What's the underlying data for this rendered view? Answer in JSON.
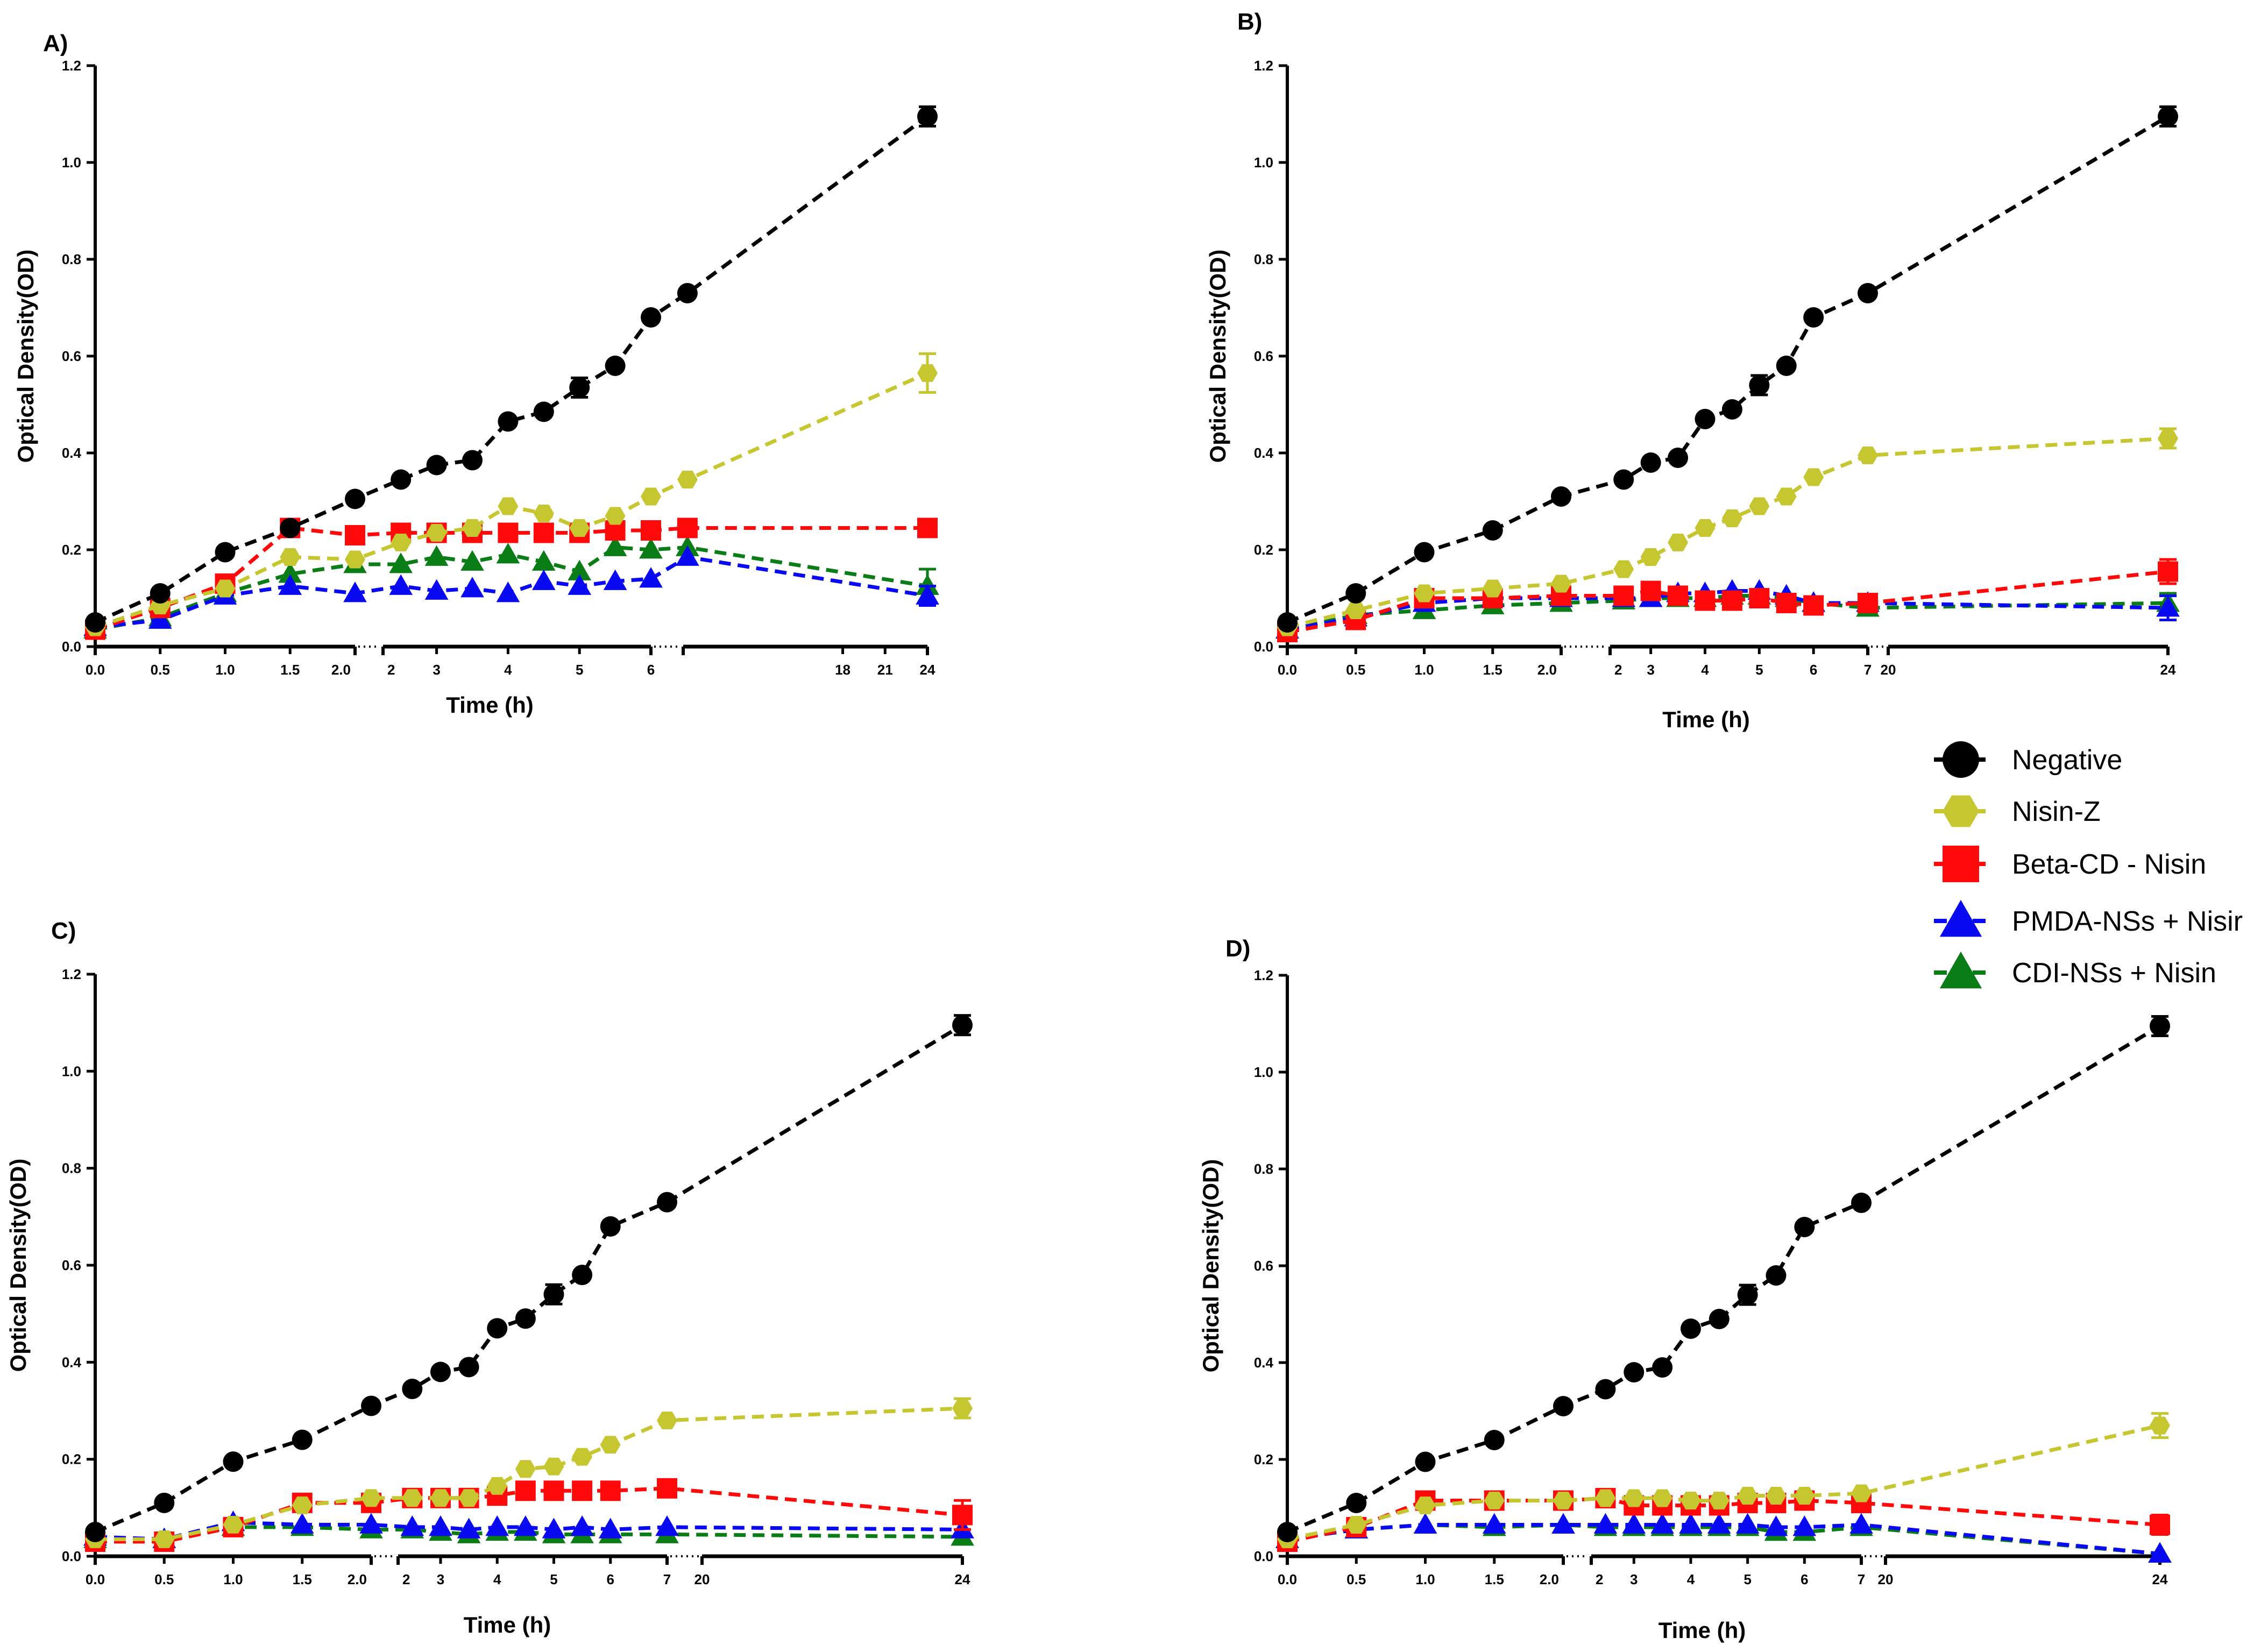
{
  "figure": {
    "legend": [
      {
        "name": "Negative",
        "color": "#000000",
        "marker": "circle-icon"
      },
      {
        "name": "Nisin-Z",
        "color": "#c6c630",
        "marker": "hexagon-icon"
      },
      {
        "name": "Beta-CD - Nisin",
        "color": "#ff0a0a",
        "marker": "square-icon"
      },
      {
        "name": "PMDA-NSs + Nisir",
        "color": "#0a0af0",
        "marker": "triangle-icon"
      },
      {
        "name": "CDI-NSs + Nisin",
        "color": "#0b7d16",
        "marker": "triangle-icon"
      }
    ]
  },
  "chart_data": [
    {
      "panel": "A)",
      "type": "line",
      "xlabel": "Time (h)",
      "ylabel": "Optical Density(OD)",
      "ylim": [
        0,
        1.2
      ],
      "yticks": [
        "0.0",
        "0.2",
        "0.4",
        "0.6",
        "0.8",
        "1.0",
        "1.2"
      ],
      "xticks": [
        {
          "t": 0,
          "label": "0.0"
        },
        {
          "t": 0.5,
          "label": "0.5"
        },
        {
          "t": 1,
          "label": "1.0"
        },
        {
          "t": 1.5,
          "label": "1.5"
        },
        {
          "t": 2,
          "label": "2.0"
        },
        {
          "t": 2.25,
          "label": "2"
        },
        {
          "t": 3,
          "label": "3"
        },
        {
          "t": 4,
          "label": "4"
        },
        {
          "t": 5,
          "label": "5"
        },
        {
          "t": 6,
          "label": "6"
        },
        {
          "t": 18,
          "label": "18"
        },
        {
          "t": 21,
          "label": "21"
        },
        {
          "t": 24,
          "label": "24"
        }
      ],
      "x": [
        0,
        0.5,
        1,
        1.5,
        2,
        2.5,
        3,
        3.5,
        4,
        4.5,
        5,
        5.5,
        6,
        7,
        24
      ],
      "series": [
        {
          "name": "Negative",
          "values": [
            0.05,
            0.11,
            0.195,
            0.245,
            0.305,
            0.345,
            0.375,
            0.385,
            0.465,
            0.485,
            0.535,
            0.58,
            0.68,
            0.73,
            1.095
          ],
          "errors": {
            "14": 0.02,
            "10": 0.02
          }
        },
        {
          "name": "Nisin-Z",
          "values": [
            0.04,
            0.085,
            0.12,
            0.185,
            0.18,
            0.215,
            0.235,
            0.245,
            0.29,
            0.275,
            0.245,
            0.27,
            0.31,
            0.345,
            0.565
          ],
          "errors": {
            "14": 0.04
          }
        },
        {
          "name": "Beta-CD - Nisin",
          "values": [
            0.035,
            0.08,
            0.13,
            0.245,
            0.23,
            0.235,
            0.235,
            0.235,
            0.235,
            0.235,
            0.235,
            0.24,
            0.24,
            0.245,
            0.245
          ],
          "errors": {}
        },
        {
          "name": "PMDA-NSs + Nisir",
          "values": [
            0.04,
            0.055,
            0.105,
            0.125,
            0.11,
            0.125,
            0.115,
            0.12,
            0.11,
            0.135,
            0.125,
            0.135,
            0.14,
            0.185,
            0.105
          ],
          "errors": {
            "14": 0.02
          }
        },
        {
          "name": "CDI-NSs + Nisin",
          "values": [
            0.035,
            0.06,
            0.11,
            0.15,
            0.17,
            0.17,
            0.185,
            0.175,
            0.19,
            0.175,
            0.155,
            0.205,
            0.2,
            0.205,
            0.125
          ],
          "errors": {
            "14": 0.035
          }
        }
      ]
    },
    {
      "panel": "B)",
      "type": "line",
      "xlabel": "Time (h)",
      "ylabel": "Optical Density(OD)",
      "ylim": [
        0,
        1.2
      ],
      "yticks": [
        "0.0",
        "0.2",
        "0.4",
        "0.6",
        "0.8",
        "1.0",
        "1.2"
      ],
      "xticks": [
        {
          "t": 0,
          "label": "0.0"
        },
        {
          "t": 0.5,
          "label": "0.5"
        },
        {
          "t": 1,
          "label": "1.0"
        },
        {
          "t": 1.5,
          "label": "1.5"
        },
        {
          "t": 2,
          "label": "2.0"
        },
        {
          "t": 2.25,
          "label": "2"
        },
        {
          "t": 3,
          "label": "3"
        },
        {
          "t": 4,
          "label": "4"
        },
        {
          "t": 5,
          "label": "5"
        },
        {
          "t": 6,
          "label": "6"
        },
        {
          "t": 7,
          "label": "7"
        },
        {
          "t": 20,
          "label": "20"
        },
        {
          "t": 24,
          "label": "24"
        }
      ],
      "x": [
        0,
        0.5,
        1,
        1.5,
        2,
        2.5,
        3,
        3.5,
        4,
        4.5,
        5,
        5.5,
        6,
        7,
        24
      ],
      "series": [
        {
          "name": "Negative",
          "values": [
            0.05,
            0.11,
            0.195,
            0.24,
            0.31,
            0.345,
            0.38,
            0.39,
            0.47,
            0.49,
            0.54,
            0.58,
            0.68,
            0.73,
            1.095
          ],
          "errors": {
            "14": 0.02,
            "10": 0.02
          }
        },
        {
          "name": "Nisin-Z",
          "values": [
            0.04,
            0.075,
            0.11,
            0.12,
            0.13,
            0.16,
            0.185,
            0.215,
            0.245,
            0.265,
            0.29,
            0.31,
            0.35,
            0.395,
            0.43
          ],
          "errors": {
            "14": 0.02
          }
        },
        {
          "name": "Beta-CD - Nisin",
          "values": [
            0.03,
            0.055,
            0.1,
            0.1,
            0.105,
            0.105,
            0.115,
            0.105,
            0.095,
            0.095,
            0.1,
            0.09,
            0.085,
            0.09,
            0.155
          ],
          "errors": {
            "14": 0.025
          }
        },
        {
          "name": "PMDA-NSs + Nisir",
          "values": [
            0.035,
            0.06,
            0.09,
            0.1,
            0.1,
            0.1,
            0.1,
            0.11,
            0.11,
            0.115,
            0.115,
            0.105,
            0.09,
            0.09,
            0.08
          ],
          "errors": {
            "14": 0.025
          }
        },
        {
          "name": "CDI-NSs + Nisin",
          "values": [
            0.035,
            0.065,
            0.075,
            0.085,
            0.09,
            0.095,
            0.1,
            0.1,
            0.1,
            0.105,
            0.105,
            0.1,
            0.09,
            0.08,
            0.09
          ],
          "errors": {
            "14": 0.02
          }
        }
      ]
    },
    {
      "panel": "C)",
      "type": "line",
      "xlabel": "Time (h)",
      "ylabel": "Optical Density(OD)",
      "ylim": [
        0,
        1.2
      ],
      "yticks": [
        "0.0",
        "0.2",
        "0.4",
        "0.6",
        "0.8",
        "1.0",
        "1.2"
      ],
      "xticks": [
        {
          "t": 0,
          "label": "0.0"
        },
        {
          "t": 0.5,
          "label": "0.5"
        },
        {
          "t": 1,
          "label": "1.0"
        },
        {
          "t": 1.5,
          "label": "1.5"
        },
        {
          "t": 2,
          "label": "2.0"
        },
        {
          "t": 2.25,
          "label": "2"
        },
        {
          "t": 3,
          "label": "3"
        },
        {
          "t": 4,
          "label": "4"
        },
        {
          "t": 5,
          "label": "5"
        },
        {
          "t": 6,
          "label": "6"
        },
        {
          "t": 7,
          "label": "7"
        },
        {
          "t": 20,
          "label": "20"
        },
        {
          "t": 24,
          "label": "24"
        }
      ],
      "x": [
        0,
        0.5,
        1,
        1.5,
        2,
        2.5,
        3,
        3.5,
        4,
        4.5,
        5,
        5.5,
        6,
        7,
        24
      ],
      "series": [
        {
          "name": "Negative",
          "values": [
            0.05,
            0.11,
            0.195,
            0.24,
            0.31,
            0.345,
            0.38,
            0.39,
            0.47,
            0.49,
            0.54,
            0.58,
            0.68,
            0.73,
            1.095
          ],
          "errors": {
            "14": 0.02,
            "10": 0.02
          }
        },
        {
          "name": "Nisin-Z",
          "values": [
            0.035,
            0.035,
            0.065,
            0.105,
            0.12,
            0.12,
            0.12,
            0.12,
            0.145,
            0.18,
            0.185,
            0.205,
            0.23,
            0.28,
            0.305
          ],
          "errors": {
            "14": 0.02
          }
        },
        {
          "name": "Beta-CD - Nisin",
          "values": [
            0.03,
            0.03,
            0.06,
            0.11,
            0.11,
            0.12,
            0.12,
            0.12,
            0.125,
            0.135,
            0.135,
            0.135,
            0.135,
            0.14,
            0.085
          ],
          "errors": {
            "14": 0.03
          }
        },
        {
          "name": "PMDA-NSs + Nisir",
          "values": [
            0.04,
            0.035,
            0.07,
            0.065,
            0.065,
            0.06,
            0.06,
            0.055,
            0.06,
            0.06,
            0.055,
            0.06,
            0.055,
            0.06,
            0.055
          ],
          "errors": {
            "14": 0.015
          }
        },
        {
          "name": "CDI-NSs + Nisin",
          "values": [
            0.035,
            0.035,
            0.06,
            0.06,
            0.055,
            0.055,
            0.05,
            0.045,
            0.05,
            0.05,
            0.045,
            0.045,
            0.045,
            0.045,
            0.04
          ],
          "errors": {
            "14": 0.015
          }
        }
      ]
    },
    {
      "panel": "D)",
      "type": "line",
      "xlabel": "Time (h)",
      "ylabel": "Optical Density(OD)",
      "ylim": [
        0,
        1.2
      ],
      "yticks": [
        "0.0",
        "0.2",
        "0.4",
        "0.6",
        "0.8",
        "1.0",
        "1.2"
      ],
      "xticks": [
        {
          "t": 0,
          "label": "0.0"
        },
        {
          "t": 0.5,
          "label": "0.5"
        },
        {
          "t": 1,
          "label": "1.0"
        },
        {
          "t": 1.5,
          "label": "1.5"
        },
        {
          "t": 2,
          "label": "2.0"
        },
        {
          "t": 2.25,
          "label": "2"
        },
        {
          "t": 3,
          "label": "3"
        },
        {
          "t": 4,
          "label": "4"
        },
        {
          "t": 5,
          "label": "5"
        },
        {
          "t": 6,
          "label": "6"
        },
        {
          "t": 7,
          "label": "7"
        },
        {
          "t": 20,
          "label": "20"
        },
        {
          "t": 24,
          "label": "24"
        }
      ],
      "x": [
        0,
        0.5,
        1,
        1.5,
        2,
        2.5,
        3,
        3.5,
        4,
        4.5,
        5,
        5.5,
        6,
        7,
        24
      ],
      "series": [
        {
          "name": "Negative",
          "values": [
            0.05,
            0.11,
            0.195,
            0.24,
            0.31,
            0.345,
            0.38,
            0.39,
            0.47,
            0.49,
            0.54,
            0.58,
            0.68,
            0.73,
            1.095
          ],
          "errors": {
            "14": 0.02,
            "10": 0.02
          }
        },
        {
          "name": "Nisin-Z",
          "values": [
            0.035,
            0.065,
            0.105,
            0.115,
            0.115,
            0.12,
            0.12,
            0.12,
            0.115,
            0.115,
            0.125,
            0.125,
            0.125,
            0.13,
            0.27
          ],
          "errors": {
            "14": 0.025
          }
        },
        {
          "name": "Beta-CD - Nisin",
          "values": [
            0.03,
            0.06,
            0.115,
            0.115,
            0.115,
            0.12,
            0.105,
            0.105,
            0.105,
            0.105,
            0.11,
            0.11,
            0.115,
            0.11,
            0.065
          ],
          "errors": {
            "14": 0.02
          }
        },
        {
          "name": "PMDA-NSs + Nisir",
          "values": [
            0.035,
            0.055,
            0.065,
            0.065,
            0.065,
            0.065,
            0.065,
            0.065,
            0.065,
            0.065,
            0.065,
            0.06,
            0.06,
            0.065,
            0.005
          ],
          "errors": {}
        },
        {
          "name": "CDI-NSs + Nisin",
          "values": [
            0.035,
            0.055,
            0.065,
            0.06,
            0.065,
            0.06,
            0.06,
            0.06,
            0.06,
            0.06,
            0.06,
            0.05,
            0.05,
            0.06,
            0.005
          ],
          "errors": {}
        }
      ]
    }
  ]
}
